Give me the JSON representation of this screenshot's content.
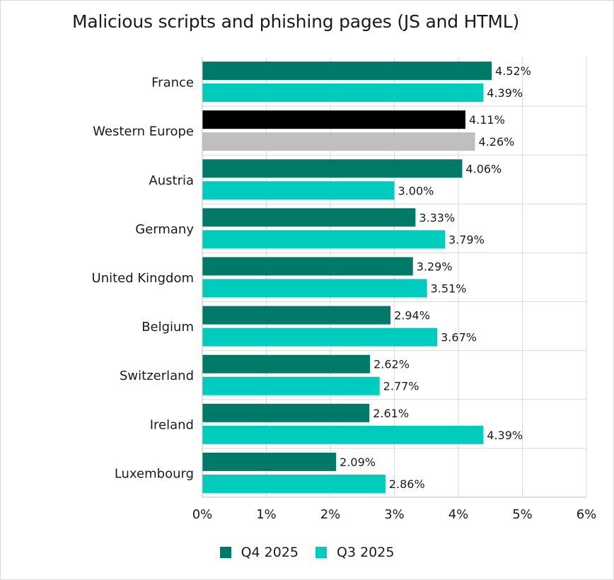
{
  "chart_data": {
    "type": "bar",
    "orientation": "horizontal",
    "title": "Malicious scripts and phishing pages (JS and HTML)",
    "xlabel": "",
    "ylabel": "",
    "xlim": [
      0,
      6
    ],
    "x_ticks": [
      "0%",
      "1%",
      "2%",
      "3%",
      "4%",
      "5%",
      "6%"
    ],
    "value_suffix": "%",
    "grid": true,
    "legend_position": "bottom",
    "categories": [
      "France",
      "Western Europe",
      "Austria",
      "Germany",
      "United Kingdom",
      "Belgium",
      "Switzerland",
      "Ireland",
      "Luxembourg"
    ],
    "series": [
      {
        "name": "Q4 2025",
        "color": "#007a68",
        "values": [
          4.52,
          4.11,
          4.06,
          3.33,
          3.29,
          2.94,
          2.62,
          2.61,
          2.09
        ],
        "labels": [
          "4.52%",
          "4.11%",
          "4.06%",
          "3.33%",
          "3.29%",
          "2.94%",
          "2.62%",
          "2.61%",
          "2.09%"
        ]
      },
      {
        "name": "Q3 2025",
        "color": "#00ccbe",
        "values": [
          4.39,
          4.26,
          3.0,
          3.79,
          3.51,
          3.67,
          2.77,
          4.39,
          2.86
        ],
        "labels": [
          "4.39%",
          "4.26%",
          "3.00%",
          "3.79%",
          "3.51%",
          "3.67%",
          "2.77%",
          "4.39%",
          "2.86%"
        ]
      }
    ],
    "highlight": {
      "category": "Western Europe",
      "colors": [
        "#000000",
        "#bfbfbf"
      ]
    }
  }
}
